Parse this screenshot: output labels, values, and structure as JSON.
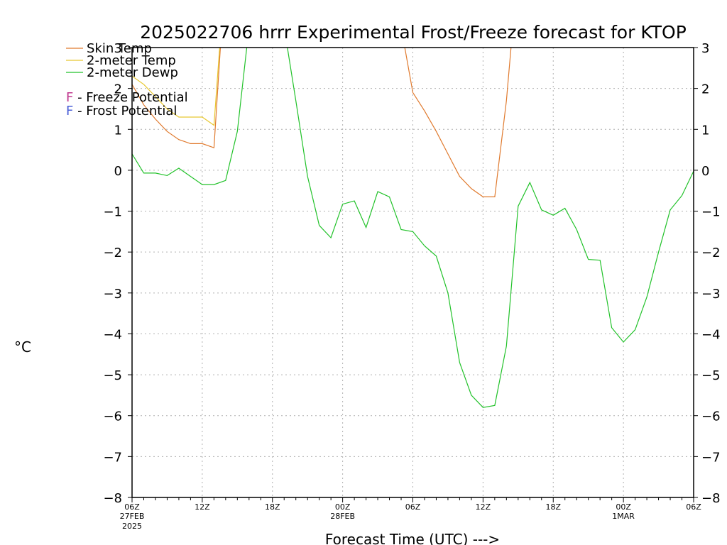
{
  "chart_data": {
    "type": "line",
    "title": "2025022706 hrrr Experimental Frost/Freeze forecast for KTOP",
    "xlabel": "Forecast Time (UTC) --->",
    "ylabel": "°C",
    "ylim": [
      -8,
      3
    ],
    "xlim": [
      0,
      48
    ],
    "grid": true,
    "legend_position": "top-left",
    "yticks": [
      -8,
      -7,
      -6,
      -5,
      -4,
      -3,
      -2,
      -1,
      0,
      1,
      2,
      3
    ],
    "xticks": [
      {
        "x": 0,
        "label": "06Z",
        "sub1": "27FEB",
        "sub2": "2025"
      },
      {
        "x": 6,
        "label": "12Z",
        "sub1": "",
        "sub2": ""
      },
      {
        "x": 12,
        "label": "18Z",
        "sub1": "",
        "sub2": ""
      },
      {
        "x": 18,
        "label": "00Z",
        "sub1": "28FEB",
        "sub2": ""
      },
      {
        "x": 24,
        "label": "06Z",
        "sub1": "",
        "sub2": ""
      },
      {
        "x": 30,
        "label": "12Z",
        "sub1": "",
        "sub2": ""
      },
      {
        "x": 36,
        "label": "18Z",
        "sub1": "",
        "sub2": ""
      },
      {
        "x": 42,
        "label": "00Z",
        "sub1": "1MAR",
        "sub2": ""
      },
      {
        "x": 48,
        "label": "06Z",
        "sub1": "",
        "sub2": ""
      }
    ],
    "legend_extra": [
      {
        "marker": "F",
        "text": " - Freeze Potential",
        "color": "#c0388f"
      },
      {
        "marker": "F",
        "text": " - Frost Potential",
        "color": "#4a5fd6"
      }
    ],
    "series": [
      {
        "name": "Skin Temp",
        "color": "#e07a2e",
        "x": [
          0,
          1,
          2,
          3,
          4,
          5,
          6,
          7,
          8,
          23,
          24,
          25,
          26,
          27,
          28,
          29,
          30,
          31,
          32,
          33
        ],
        "y": [
          2.1,
          1.6,
          1.25,
          0.95,
          0.75,
          0.65,
          0.65,
          0.55,
          5.0,
          3.5,
          1.9,
          1.45,
          0.95,
          0.4,
          -0.15,
          -0.45,
          -0.65,
          -0.65,
          1.7,
          5.0
        ]
      },
      {
        "name": "2-meter Temp",
        "color": "#e8c830",
        "x": [
          0,
          1,
          2,
          3,
          4,
          5,
          6,
          7,
          8
        ],
        "y": [
          2.3,
          2.1,
          1.8,
          1.5,
          1.3,
          1.3,
          1.3,
          1.1,
          5.0
        ]
      },
      {
        "name": "2-meter Dewp",
        "color": "#22c22a",
        "x": [
          0,
          1,
          2,
          3,
          4,
          5,
          6,
          7,
          8,
          9,
          10,
          11,
          12,
          13,
          14,
          15,
          16,
          17,
          18,
          19,
          20,
          21,
          22,
          23,
          24,
          25,
          26,
          27,
          28,
          29,
          30,
          31,
          32,
          33,
          34,
          35,
          36,
          37,
          38,
          39,
          40,
          41,
          42,
          43,
          44,
          45,
          46,
          47,
          48
        ],
        "y": [
          0.4,
          -0.07,
          -0.07,
          -0.13,
          0.05,
          -0.15,
          -0.35,
          -0.35,
          -0.25,
          0.95,
          3.5,
          3.5,
          3.5,
          3.5,
          1.7,
          -0.15,
          -1.35,
          -1.65,
          -0.83,
          -0.75,
          -1.4,
          -0.52,
          -0.65,
          -1.45,
          -1.5,
          -1.85,
          -2.1,
          -3.0,
          -4.7,
          -5.5,
          -5.8,
          -5.75,
          -4.3,
          -0.88,
          -0.3,
          -0.97,
          -1.1,
          -0.93,
          -1.45,
          -2.18,
          -2.2,
          -3.85,
          -4.2,
          -3.9,
          -3.1,
          -2.0,
          -0.97,
          -0.62,
          -0.02
        ]
      }
    ]
  }
}
